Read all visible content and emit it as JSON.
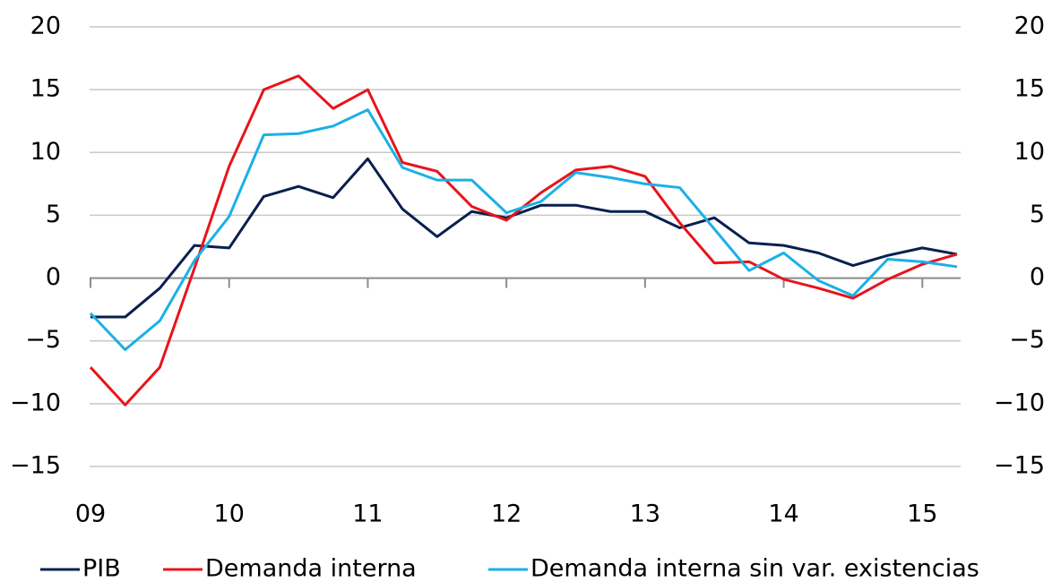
{
  "chart_data": {
    "type": "line",
    "categories": [
      "09",
      null,
      null,
      null,
      "10",
      null,
      null,
      null,
      "11",
      null,
      null,
      null,
      "12",
      null,
      null,
      null,
      "13",
      null,
      null,
      null,
      "14",
      null,
      null,
      null,
      "15",
      null
    ],
    "series": [
      {
        "name": "PIB",
        "color": "#0a1f4f",
        "values": [
          -3.1,
          -3.1,
          -0.8,
          2.6,
          2.4,
          6.5,
          7.3,
          6.4,
          9.5,
          5.5,
          3.3,
          5.3,
          4.8,
          5.8,
          5.8,
          5.3,
          5.3,
          4.0,
          4.8,
          2.8,
          2.6,
          2.0,
          1.0,
          1.8,
          2.4,
          1.9
        ]
      },
      {
        "name": "Demanda interna",
        "color": "#e8141b",
        "values": [
          -7.1,
          -10.1,
          -7.1,
          0.8,
          8.9,
          15.0,
          16.1,
          13.5,
          15.0,
          9.2,
          8.5,
          5.7,
          4.6,
          6.8,
          8.6,
          8.9,
          8.1,
          4.4,
          1.2,
          1.3,
          -0.1,
          -0.8,
          -1.6,
          -0.1,
          1.1,
          1.9
        ]
      },
      {
        "name": "Demanda interna sin var. existencias",
        "color": "#1bb0e6",
        "values": [
          -2.8,
          -5.7,
          -3.4,
          1.4,
          4.9,
          11.4,
          11.5,
          12.1,
          13.4,
          8.8,
          7.8,
          7.8,
          5.2,
          6.1,
          8.4,
          8.0,
          7.5,
          7.2,
          3.9,
          0.6,
          2.0,
          -0.2,
          -1.4,
          1.5,
          1.3,
          0.9
        ]
      }
    ],
    "ylim": [
      -15,
      20
    ],
    "yticks": [
      {
        "value": -15,
        "label": "−15"
      },
      {
        "value": -10,
        "label": "−10"
      },
      {
        "value": -5,
        "label": "−5"
      },
      0,
      5,
      10,
      15,
      20
    ],
    "y2lim": [
      -15,
      20
    ],
    "y2ticks": [
      {
        "value": -15,
        "label": "−15"
      },
      {
        "value": -10,
        "label": "−10"
      },
      {
        "value": -5,
        "label": "−5"
      },
      0,
      5,
      10,
      15,
      20
    ],
    "grid": true,
    "legend": "bottom"
  }
}
